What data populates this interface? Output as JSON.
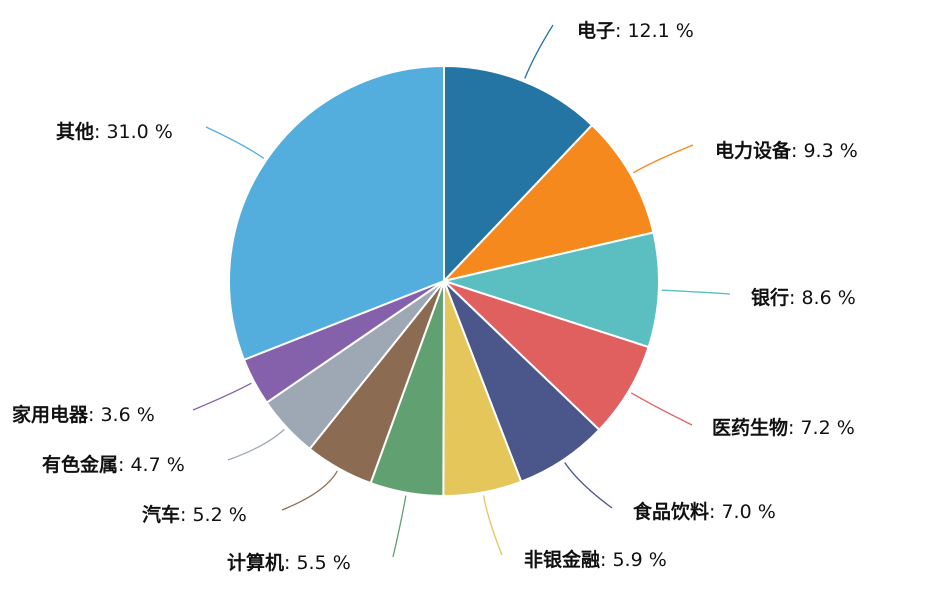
{
  "chart_data": {
    "type": "pie",
    "title": "",
    "unit": "%",
    "slices": [
      {
        "label": "电子",
        "value": 12.1,
        "color": "#2475a3"
      },
      {
        "label": "电力设备",
        "value": 9.3,
        "color": "#f5891e"
      },
      {
        "label": "银行",
        "value": 8.6,
        "color": "#5bbec0"
      },
      {
        "label": "医药生物",
        "value": 7.2,
        "color": "#e06060"
      },
      {
        "label": "食品饮料",
        "value": 7.0,
        "color": "#4b568b"
      },
      {
        "label": "非银金融",
        "value": 5.9,
        "color": "#e4c65a"
      },
      {
        "label": "计算机",
        "value": 5.5,
        "color": "#60a071"
      },
      {
        "label": "汽车",
        "value": 5.2,
        "color": "#8b6b52"
      },
      {
        "label": "有色金属",
        "value": 4.7,
        "color": "#9ea8b4"
      },
      {
        "label": "家用电器",
        "value": 3.6,
        "color": "#8561ac"
      },
      {
        "label": "其他",
        "value": 31.0,
        "color": "#53aede"
      }
    ]
  }
}
